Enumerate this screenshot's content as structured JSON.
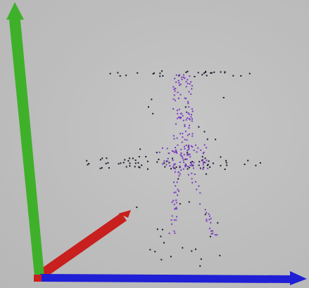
{
  "scene": {
    "background_color": "#bdbdbd",
    "axes": [
      {
        "name": "y-axis",
        "color": "#3fb02a"
      },
      {
        "name": "x-axis",
        "color": "#1f1fd6"
      },
      {
        "name": "z-axis",
        "color": "#c8201e"
      }
    ],
    "point_series": [
      {
        "name": "dark-points",
        "color": "#1b1b2e"
      },
      {
        "name": "purple-points",
        "color": "#7a3cc4"
      }
    ]
  }
}
